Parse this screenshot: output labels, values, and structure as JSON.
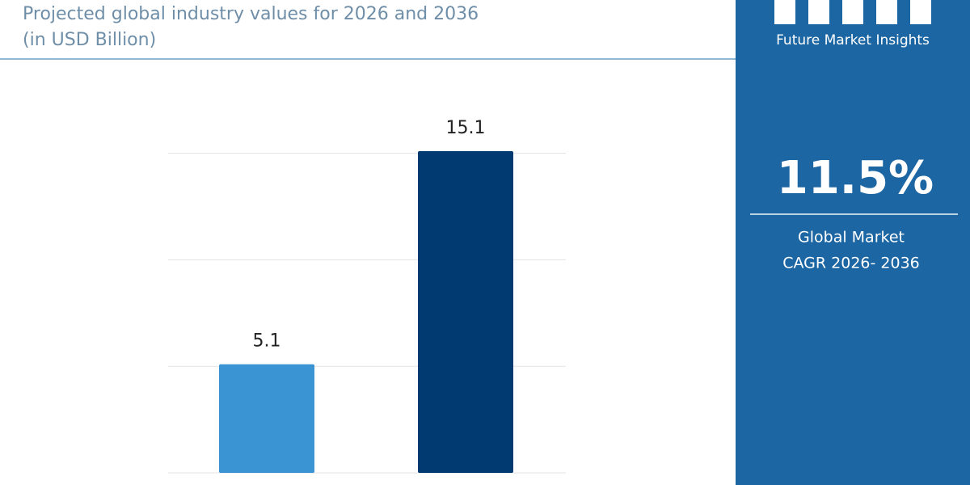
{
  "chart_data": {
    "type": "bar",
    "title": "Projected global industry values for 2026 and 2036",
    "subtitle": "(in USD Billion)",
    "categories": [
      null,
      null
    ],
    "values": [
      5.1,
      15.1
    ],
    "colors": [
      "#3a93d3",
      "#003a70"
    ],
    "ylim": [
      0,
      15.1
    ],
    "yticks": [
      0,
      5,
      10,
      15
    ],
    "grid": true
  },
  "sidebar": {
    "brand": "Future Market Insights",
    "cagr": "11.5%",
    "cagr_label_lines": [
      "Global Market",
      "CAGR 2026- 2036"
    ]
  }
}
